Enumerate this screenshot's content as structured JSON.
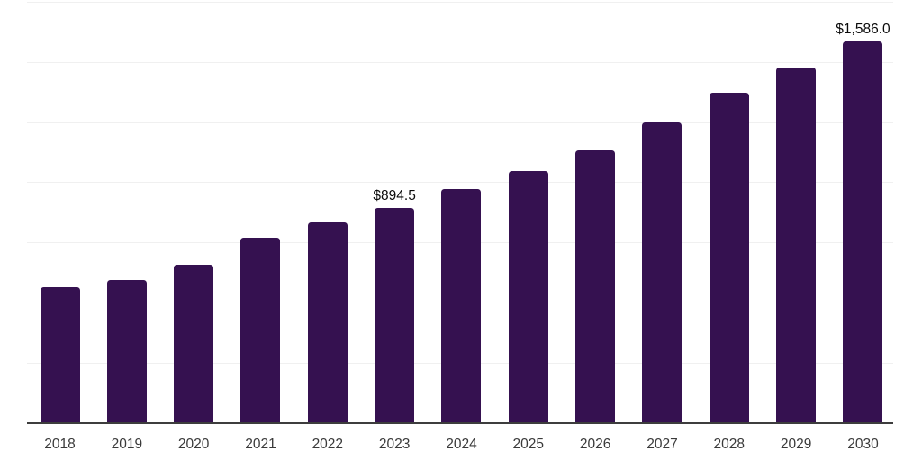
{
  "chart_data": {
    "type": "bar",
    "title": "",
    "xlabel": "",
    "ylabel": "",
    "categories": [
      "2018",
      "2019",
      "2020",
      "2021",
      "2022",
      "2023",
      "2024",
      "2025",
      "2026",
      "2027",
      "2028",
      "2029",
      "2030"
    ],
    "values": [
      562,
      595,
      658,
      769,
      834,
      894.5,
      973,
      1045,
      1133,
      1249,
      1373,
      1477,
      1586
    ],
    "labeled_points": [
      {
        "category": "2023",
        "value": 894.5,
        "label": "$894.5"
      },
      {
        "category": "2030",
        "value": 1586.0,
        "label": "$1,586.0"
      }
    ],
    "ylim": [
      0,
      1750
    ],
    "gridline_step": 250,
    "grid": true,
    "legend": false,
    "colors": {
      "bar": "#351150",
      "gridline": "#f0f0f0",
      "axis_line": "#3d3d3d",
      "tick_label": "#3a3a3a",
      "annotation_label": "#0a0a0a",
      "background": "#ffffff"
    }
  }
}
